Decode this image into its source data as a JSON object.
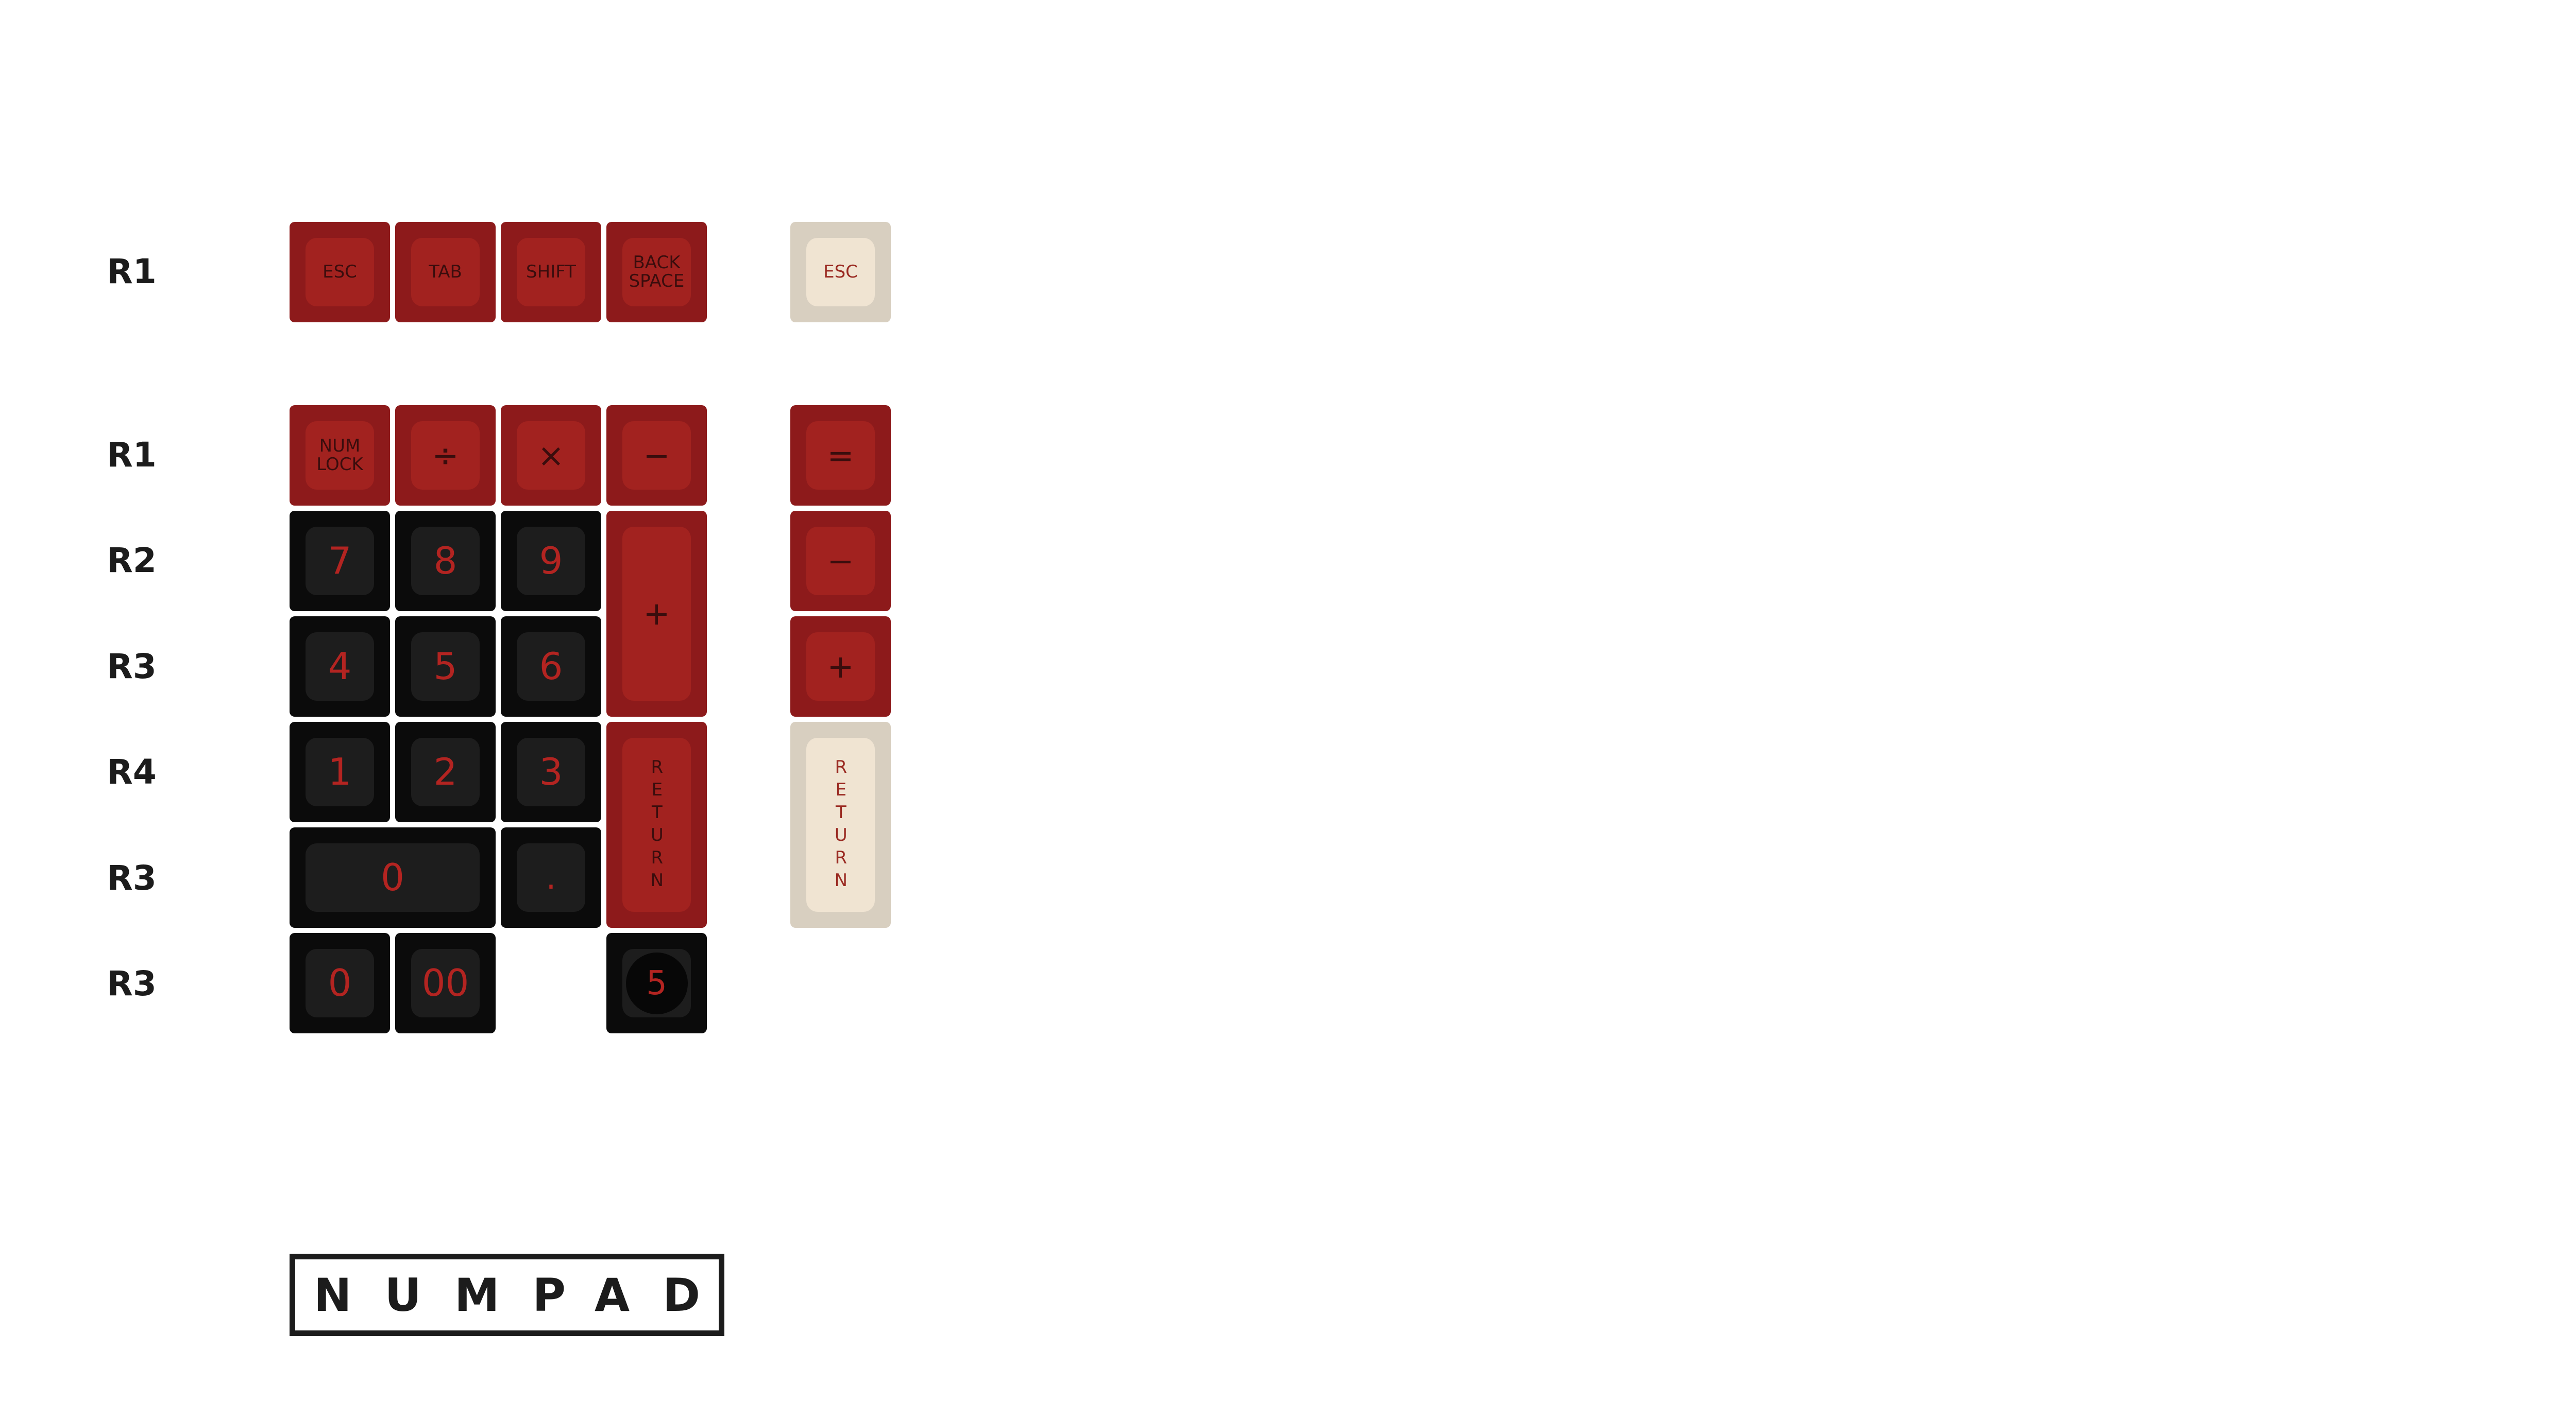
{
  "row_labels": [
    "R1",
    "R1",
    "R2",
    "R3",
    "R4",
    "R3",
    "R3"
  ],
  "keys": {
    "esc": "ESC",
    "tab": "TAB",
    "shift": "SHIFT",
    "backspace": "BACK SPACE",
    "esc_alt": "ESC",
    "numlock": "NUM LOCK",
    "divide": "÷",
    "multiply": "×",
    "minus": "−",
    "equals": "=",
    "minus_alt": "−",
    "plus": "+",
    "plus_alt": "+",
    "return": "RETURN",
    "return_alt": "RETURN",
    "n7": "7",
    "n8": "8",
    "n9": "9",
    "n4": "4",
    "n5": "5",
    "n6": "6",
    "n1": "1",
    "n2": "2",
    "n3": "3",
    "n0_wide": "0",
    "dot": ".",
    "n0": "0",
    "n00": "00",
    "n5_homing": "5"
  },
  "colors": {
    "red_base": "#8d1a1b",
    "red_top": "#a2221f",
    "black_base": "#0b0b0b",
    "black_top": "#1d1d1d",
    "cream_base": "#d8cfc0",
    "cream_top": "#f0e4d2"
  },
  "title": "NUMPAD"
}
